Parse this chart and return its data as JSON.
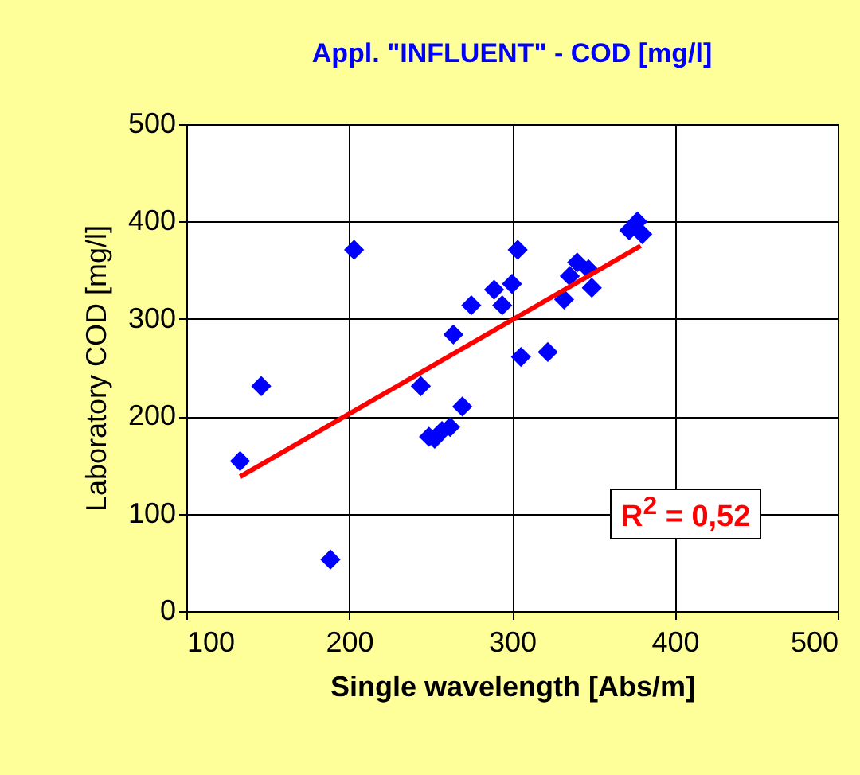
{
  "chart_data": {
    "type": "scatter",
    "title": "Appl. \"INFLUENT\" - COD [mg/l]",
    "xlabel": "Single wavelength [Abs/m]",
    "ylabel": "Laboratory COD [mg/l]",
    "xlim": [
      100,
      500
    ],
    "xticks": [
      100,
      200,
      300,
      400,
      500
    ],
    "ylim": [
      0,
      500
    ],
    "yticks": [
      0,
      100,
      200,
      300,
      400,
      500
    ],
    "grid": true,
    "marker": "diamond",
    "series": [
      {
        "color": "#0000ff",
        "x": [
          133,
          146,
          203,
          188.5,
          244,
          249,
          252.5,
          257,
          262,
          269.5,
          264,
          275,
          289,
          294,
          300,
          303.5,
          305.5,
          322,
          332,
          335.5,
          340,
          347,
          349,
          372,
          377,
          380
        ],
        "values": [
          154,
          231,
          371,
          53,
          231,
          179,
          177,
          185,
          189,
          210,
          284,
          314,
          330,
          314,
          336,
          371,
          261,
          266,
          320,
          344,
          358,
          351,
          332,
          391,
          400,
          387
        ]
      },
      {
        "type": "line",
        "marker": "none",
        "color": "#ff0000",
        "x": [
          133,
          379
        ],
        "values": [
          138,
          375
        ]
      }
    ],
    "annotations": [
      "R$^{2}$ = 0,52"
    ]
  }
}
